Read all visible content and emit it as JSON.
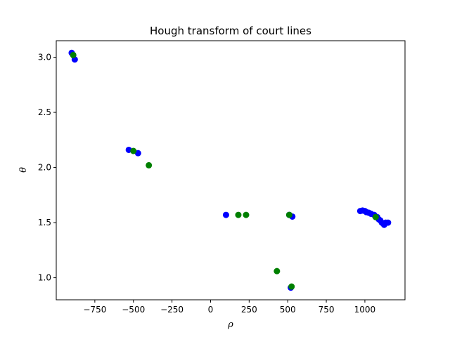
{
  "chart_data": {
    "type": "scatter",
    "title": "Hough transform of court lines",
    "xlabel": "ρ",
    "ylabel": "θ",
    "xlim": [
      -1000,
      1260
    ],
    "ylim": [
      0.8,
      3.15
    ],
    "xticks": [
      -750,
      -500,
      -250,
      0,
      250,
      500,
      750,
      1000
    ],
    "yticks": [
      1.0,
      1.5,
      2.0,
      2.5,
      3.0
    ],
    "grid": false,
    "series": [
      {
        "color": "#0000ff",
        "points": [
          {
            "x": -900,
            "y": 3.04
          },
          {
            "x": -890,
            "y": 3.02
          },
          {
            "x": -880,
            "y": 2.98
          },
          {
            "x": -530,
            "y": 2.16
          },
          {
            "x": -470,
            "y": 2.13
          },
          {
            "x": 100,
            "y": 1.57
          },
          {
            "x": 510,
            "y": 1.57
          },
          {
            "x": 530,
            "y": 1.555
          },
          {
            "x": 520,
            "y": 0.91
          },
          {
            "x": 970,
            "y": 1.605
          },
          {
            "x": 985,
            "y": 1.61
          },
          {
            "x": 1000,
            "y": 1.605
          },
          {
            "x": 1010,
            "y": 1.595
          },
          {
            "x": 1025,
            "y": 1.59
          },
          {
            "x": 1040,
            "y": 1.58
          },
          {
            "x": 1060,
            "y": 1.57
          },
          {
            "x": 1080,
            "y": 1.55
          },
          {
            "x": 1090,
            "y": 1.53
          },
          {
            "x": 1100,
            "y": 1.52
          },
          {
            "x": 1110,
            "y": 1.5
          },
          {
            "x": 1120,
            "y": 1.49
          },
          {
            "x": 1125,
            "y": 1.48
          },
          {
            "x": 1135,
            "y": 1.5
          },
          {
            "x": 1150,
            "y": 1.5
          }
        ]
      },
      {
        "color": "#008000",
        "points": [
          {
            "x": -890,
            "y": 3.02
          },
          {
            "x": -500,
            "y": 2.15
          },
          {
            "x": -400,
            "y": 2.02
          },
          {
            "x": 180,
            "y": 1.57
          },
          {
            "x": 230,
            "y": 1.57
          },
          {
            "x": 510,
            "y": 1.57
          },
          {
            "x": 430,
            "y": 1.06
          },
          {
            "x": 525,
            "y": 0.92
          },
          {
            "x": 1070,
            "y": 1.55
          }
        ]
      }
    ]
  }
}
